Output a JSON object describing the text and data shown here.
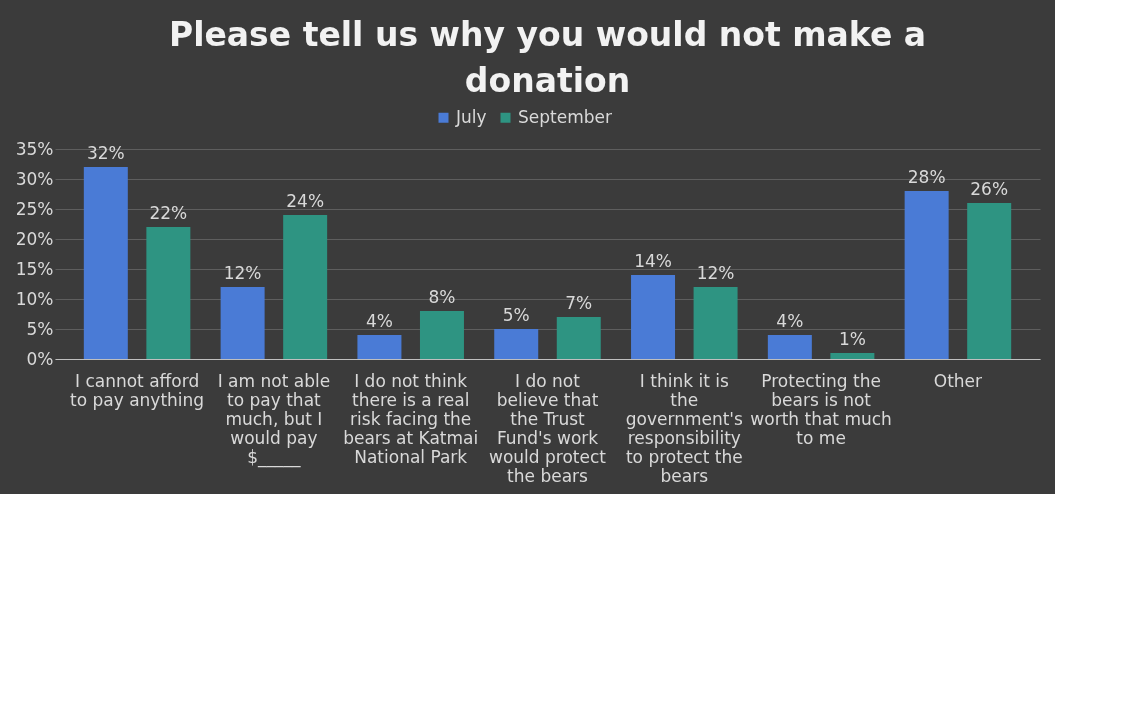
{
  "chart_data": {
    "type": "bar",
    "title": "Please tell us why you would not make a donation",
    "categories": [
      "I cannot afford to pay anything",
      "I am not able to pay that much, but I would pay $_____",
      "I do not think there is a real risk facing the bears at Katmai National Park",
      "I do not believe that the Trust Fund's work would protect the bears",
      "I think it is the government's responsibility to protect the bears",
      "Protecting the bears is not worth that much to me",
      "Other"
    ],
    "series": [
      {
        "name": "July",
        "color": "#4a7bd6",
        "values": [
          32,
          12,
          4,
          5,
          14,
          4,
          28
        ],
        "value_labels": [
          "32%",
          "12%",
          "4%",
          "5%",
          "14%",
          "4%",
          "28%"
        ]
      },
      {
        "name": "September",
        "color": "#2e9482",
        "values": [
          22,
          24,
          8,
          7,
          12,
          1,
          26
        ],
        "value_labels": [
          "22%",
          "24%",
          "8%",
          "7%",
          "12%",
          "1%",
          "26%"
        ]
      }
    ],
    "ylim": [
      0,
      35
    ],
    "yticks": [
      {
        "value": 0,
        "label": "0%"
      },
      {
        "value": 5,
        "label": "5%"
      },
      {
        "value": 10,
        "label": "10%"
      },
      {
        "value": 15,
        "label": "15%"
      },
      {
        "value": 20,
        "label": "20%"
      },
      {
        "value": 25,
        "label": "25%"
      },
      {
        "value": 30,
        "label": "30%"
      },
      {
        "value": 35,
        "label": "35%"
      }
    ],
    "grid": "y",
    "legend": "top"
  }
}
